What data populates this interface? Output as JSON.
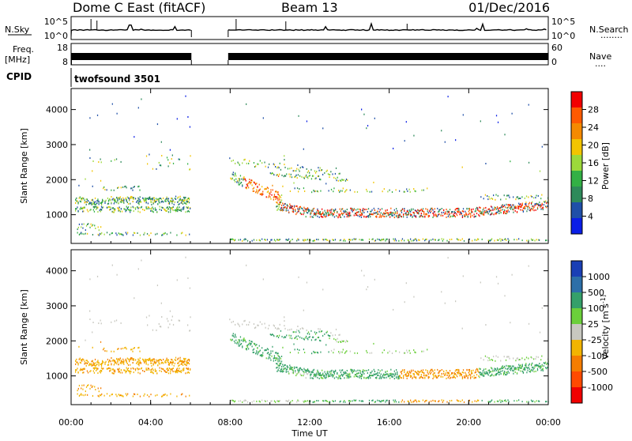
{
  "header": {
    "radar": "Dome C East (fitACF)",
    "beam": "Beam 13",
    "date": "01/Dec/2016"
  },
  "side_labels": {
    "nsky": "N.Sky",
    "freq_line1": "Freq.",
    "freq_line2": "[MHz]",
    "cpid": "CPID",
    "nsearch": "N.Search",
    "nave": "Nave"
  },
  "cpid_name": "twofsound 3501",
  "chart_data": [
    {
      "type": "line",
      "panel": "noise",
      "ylabel": "N.Sky",
      "left_ticks": [
        "10^5",
        "10^0"
      ],
      "right_ticks": [
        "10^5",
        "10^0"
      ],
      "right_label": "N.Search",
      "data_gap_hours": [
        6.05,
        7.9
      ],
      "baseline_level": "near 10^0 with spikes"
    },
    {
      "type": "line",
      "panel": "frequency",
      "ylabel": "Freq. [MHz]",
      "left_ticks": [
        "18",
        "8"
      ],
      "right_ticks": [
        "60",
        "0"
      ],
      "right_label": "Nave",
      "data_gap_hours": [
        6.05,
        7.9
      ],
      "description_level_mhz": 12
    },
    {
      "type": "heatmap",
      "panel": "power",
      "ylabel": "Slant Range [km]",
      "y_ticks": [
        1000,
        2000,
        3000,
        4000
      ],
      "ylim": [
        180,
        4600
      ],
      "colorbar_label": "Power [dB]",
      "colorbar_ticks": [
        "4",
        "8",
        "12",
        "16",
        "20",
        "24",
        "28"
      ],
      "colorbar_colors": [
        "#0a1ee6",
        "#1f4fa8",
        "#2e8a5a",
        "#33b045",
        "#9cd93a",
        "#f2c400",
        "#f58a00",
        "#ff5a00",
        "#f20000"
      ],
      "echo_regions": [
        {
          "t0": 0.2,
          "t1": 6.0,
          "r0": 1100,
          "r1": 1600,
          "level": 10
        },
        {
          "t0": 8.9,
          "t1": 10.3,
          "r0": 1400,
          "r1": 2000,
          "level": 26
        },
        {
          "t0": 10.5,
          "t1": 23.9,
          "r0": 850,
          "r1": 1300,
          "level": 18
        }
      ]
    },
    {
      "type": "heatmap",
      "panel": "velocity",
      "ylabel": "Slant Range [km]",
      "y_ticks": [
        1000,
        2000,
        3000,
        4000
      ],
      "ylim": [
        180,
        4600
      ],
      "colorbar_label": "Velocity [m s^-1]",
      "colorbar_ticks": [
        "1000",
        "500",
        "100",
        "25",
        "-25",
        "-100",
        "-500",
        "-1000"
      ],
      "colorbar_colors": [
        "#1a3fb5",
        "#2d6fa8",
        "#35a06a",
        "#6bcf3a",
        "#c8c8c0",
        "#f2b400",
        "#f57d00",
        "#ff4a00",
        "#f00000"
      ],
      "x_ticks": [
        "00:00",
        "04:00",
        "08:00",
        "12:00",
        "16:00",
        "20:00",
        "00:00"
      ],
      "xlabel": "Time UT",
      "x_range_hours": [
        0,
        24
      ]
    }
  ]
}
